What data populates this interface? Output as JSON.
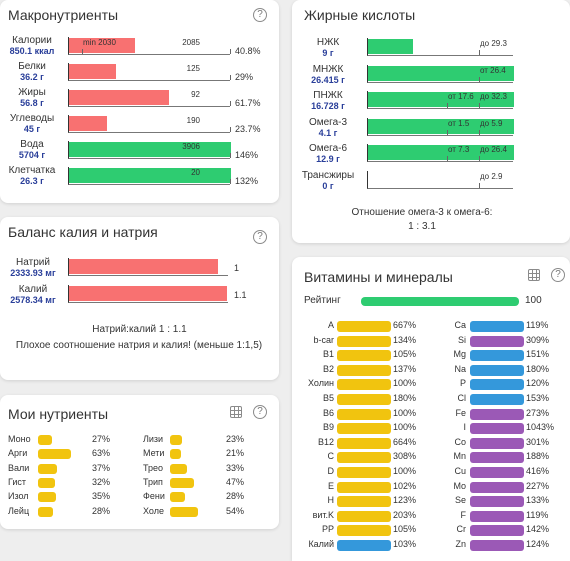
{
  "macro": {
    "title": "Макронутриенты",
    "rows": [
      {
        "name": "Калории",
        "value": "850.1 ккал",
        "fill": 0.408,
        "color": "#f87171",
        "tick_label": "2085",
        "min_label": "min 2030",
        "pct": "40.8%"
      },
      {
        "name": "Белки",
        "value": "36.2 г",
        "fill": 0.29,
        "color": "#f87171",
        "tick_label": "125",
        "pct": "29%"
      },
      {
        "name": "Жиры",
        "value": "56.8 г",
        "fill": 0.617,
        "color": "#f87171",
        "tick_label": "92",
        "pct": "61.7%"
      },
      {
        "name": "Углеводы",
        "value": "45 г",
        "fill": 0.237,
        "color": "#f87171",
        "tick_label": "190",
        "pct": "23.7%"
      },
      {
        "name": "Вода",
        "value": "5704 г",
        "fill": 1.0,
        "color": "#2ecc71",
        "tick_label": "3906",
        "pct": "146%"
      },
      {
        "name": "Клетчатка",
        "value": "26.3 г",
        "fill": 1.0,
        "color": "#2ecc71",
        "tick_label": "20",
        "pct": "132%"
      }
    ]
  },
  "balance": {
    "title": "Баланс калия и натрия",
    "rows": [
      {
        "name": "Натрий",
        "value": "2333.93 мг",
        "fill": 0.93,
        "ratio": "1"
      },
      {
        "name": "Калий",
        "value": "2578.34 мг",
        "fill": 0.985,
        "ratio": "1.1"
      }
    ],
    "ratio_text": "Натрий:калий 1 : 1.1",
    "note": "Плохое соотношение натрия и калия! (меньше 1:1,5)"
  },
  "my_nutrients": {
    "title": "Мои нутриенты",
    "left": [
      {
        "name": "Моно",
        "pct": "27%",
        "fill": 0.27
      },
      {
        "name": "Арги",
        "pct": "63%",
        "fill": 0.63
      },
      {
        "name": "Вали",
        "pct": "37%",
        "fill": 0.37
      },
      {
        "name": "Гист",
        "pct": "32%",
        "fill": 0.32
      },
      {
        "name": "Изол",
        "pct": "35%",
        "fill": 0.35
      },
      {
        "name": "Лейц",
        "pct": "28%",
        "fill": 0.28
      }
    ],
    "right": [
      {
        "name": "Лизи",
        "pct": "23%",
        "fill": 0.23
      },
      {
        "name": "Мети",
        "pct": "21%",
        "fill": 0.21
      },
      {
        "name": "Трео",
        "pct": "33%",
        "fill": 0.33
      },
      {
        "name": "Трип",
        "pct": "47%",
        "fill": 0.47
      },
      {
        "name": "Фени",
        "pct": "28%",
        "fill": 0.28
      },
      {
        "name": "Холе",
        "pct": "54%",
        "fill": 0.54
      }
    ]
  },
  "fatty": {
    "title": "Жирные кислоты",
    "rows": [
      {
        "name": "НЖК",
        "value": "9 г",
        "fill": 0.31,
        "range": "до 29.3"
      },
      {
        "name": "МНЖК",
        "value": "26.415 г",
        "fill": 1.0,
        "range": "от 26.4"
      },
      {
        "name": "ПНЖК",
        "value": "16.728 г",
        "fill": 1.0,
        "range_from": "от 17.6",
        "range_to": "до 32.3"
      },
      {
        "name": "Омега-3",
        "value": "4.1 г",
        "fill": 1.0,
        "range_from": "от 1.5",
        "range_to": "до 5.9"
      },
      {
        "name": "Омега-6",
        "value": "12.9 г",
        "fill": 1.0,
        "range_from": "от 7.3",
        "range_to": "до 26.4"
      },
      {
        "name": "Трансжиры",
        "value": "0 г",
        "fill": 0.0,
        "range": "до 2.9"
      }
    ],
    "ratio_label": "Отношение омега-3 к омега-6:",
    "ratio_value": "1 : 3.1"
  },
  "vitamins": {
    "title": "Витамины и минералы",
    "rating_label": "Рейтинг",
    "rating_value": "100",
    "vitamins": [
      {
        "name": "A",
        "pct": "667%",
        "color": "#f1c40f"
      },
      {
        "name": "b-car",
        "pct": "134%",
        "color": "#f1c40f"
      },
      {
        "name": "B1",
        "pct": "105%",
        "color": "#f1c40f"
      },
      {
        "name": "B2",
        "pct": "137%",
        "color": "#f1c40f"
      },
      {
        "name": "Холин",
        "pct": "100%",
        "color": "#f1c40f"
      },
      {
        "name": "B5",
        "pct": "180%",
        "color": "#f1c40f"
      },
      {
        "name": "B6",
        "pct": "100%",
        "color": "#f1c40f"
      },
      {
        "name": "B9",
        "pct": "100%",
        "color": "#f1c40f"
      },
      {
        "name": "B12",
        "pct": "664%",
        "color": "#f1c40f"
      },
      {
        "name": "C",
        "pct": "308%",
        "color": "#f1c40f"
      },
      {
        "name": "D",
        "pct": "100%",
        "color": "#f1c40f"
      },
      {
        "name": "E",
        "pct": "102%",
        "color": "#f1c40f"
      },
      {
        "name": "H",
        "pct": "123%",
        "color": "#f1c40f"
      },
      {
        "name": "вит.K",
        "pct": "203%",
        "color": "#f1c40f"
      },
      {
        "name": "PP",
        "pct": "105%",
        "color": "#f1c40f"
      },
      {
        "name": "Калий",
        "pct": "103%",
        "color": "#3498db"
      }
    ],
    "minerals": [
      {
        "name": "Ca",
        "pct": "119%",
        "color": "#3498db"
      },
      {
        "name": "Si",
        "pct": "309%",
        "color": "#9b59b6"
      },
      {
        "name": "Mg",
        "pct": "151%",
        "color": "#3498db"
      },
      {
        "name": "Na",
        "pct": "180%",
        "color": "#3498db"
      },
      {
        "name": "P",
        "pct": "120%",
        "color": "#3498db"
      },
      {
        "name": "Cl",
        "pct": "153%",
        "color": "#3498db"
      },
      {
        "name": "Fe",
        "pct": "273%",
        "color": "#9b59b6"
      },
      {
        "name": "I",
        "pct": "1043%",
        "color": "#9b59b6"
      },
      {
        "name": "Co",
        "pct": "301%",
        "color": "#9b59b6"
      },
      {
        "name": "Mn",
        "pct": "188%",
        "color": "#9b59b6"
      },
      {
        "name": "Cu",
        "pct": "416%",
        "color": "#9b59b6"
      },
      {
        "name": "Mo",
        "pct": "227%",
        "color": "#9b59b6"
      },
      {
        "name": "Se",
        "pct": "133%",
        "color": "#9b59b6"
      },
      {
        "name": "F",
        "pct": "119%",
        "color": "#9b59b6"
      },
      {
        "name": "Cr",
        "pct": "142%",
        "color": "#9b59b6"
      },
      {
        "name": "Zn",
        "pct": "124%",
        "color": "#9b59b6"
      }
    ]
  },
  "colors": {
    "red": "#f87171",
    "green": "#2ecc71",
    "yellow": "#f1c40f",
    "blue": "#3498db",
    "purple": "#9b59b6"
  },
  "icons": {
    "help": "?"
  }
}
